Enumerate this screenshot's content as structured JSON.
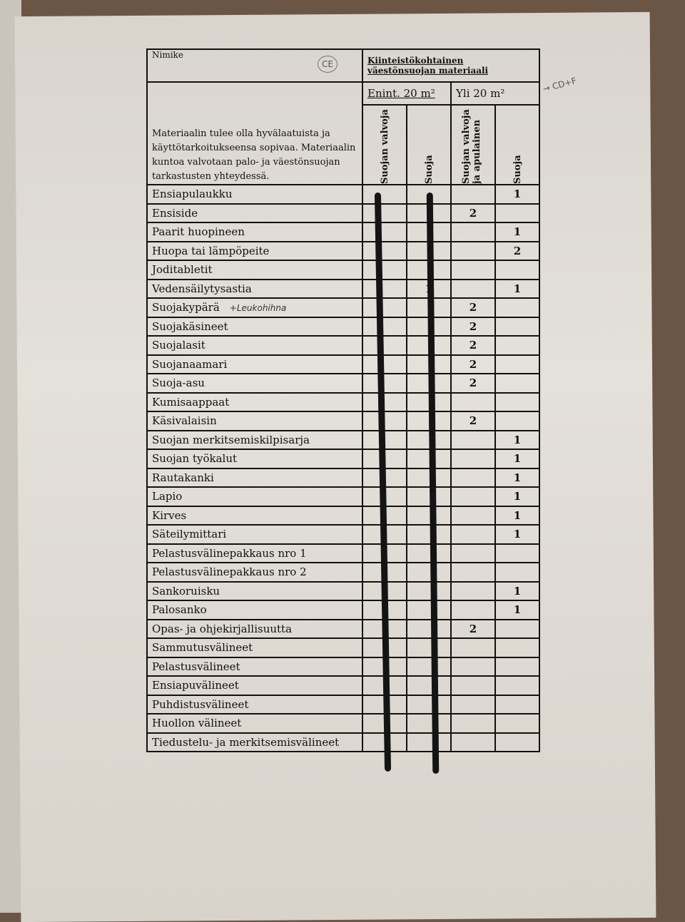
{
  "header": {
    "nimike": "Nimike",
    "group_title": "Kiinteistökohtainen väestönsuojan materiaali",
    "description": "Materiaalin tulee olla hyvälaatuista ja käyttötarkoitukseensa sopivaa. Materiaalin kuntoa valvotaan palo- ja väestönsuojan tarkastusten yhteydessä.",
    "size_small": "Enint. 20 m²",
    "size_large": "Yli 20 m²",
    "columns": [
      "Suojan valvoja",
      "Suoja",
      "Suojan valvoja ja apulainen",
      "Suoja"
    ]
  },
  "annotations": {
    "ce": "CE",
    "cd_f": "→ CD+F"
  },
  "rows": [
    {
      "name": "Ensiapulaukku",
      "v": [
        "",
        "",
        "",
        "1"
      ]
    },
    {
      "name": "Ensiside",
      "v": [
        "",
        "",
        "2",
        ""
      ]
    },
    {
      "name": "Paarit huopineen",
      "v": [
        "",
        "",
        "",
        "1"
      ]
    },
    {
      "name": "Huopa tai lämpöpeite",
      "v": [
        "",
        "",
        "",
        "2"
      ]
    },
    {
      "name": "Joditabletit",
      "v": [
        "",
        "",
        "",
        ""
      ]
    },
    {
      "name": "Vedensäilytysastia",
      "v": [
        "",
        "1",
        "",
        "1"
      ]
    },
    {
      "name": "Suojakypärä",
      "note": "+Leukohihna",
      "v": [
        "",
        "",
        "2",
        ""
      ]
    },
    {
      "name": "Suojakäsineet",
      "v": [
        "",
        "",
        "2",
        ""
      ]
    },
    {
      "name": "Suojalasit",
      "v": [
        "",
        "",
        "2",
        ""
      ]
    },
    {
      "name": "Suojanaamari",
      "v": [
        "",
        "",
        "2",
        ""
      ]
    },
    {
      "name": "Suoja-asu",
      "v": [
        "",
        "",
        "2",
        ""
      ]
    },
    {
      "name": "Kumisaappaat",
      "v": [
        "",
        "",
        "",
        ""
      ]
    },
    {
      "name": "Käsivalaisin",
      "v": [
        "",
        "",
        "2",
        ""
      ]
    },
    {
      "name": "Suojan merkitsemiskilpisarja",
      "v": [
        "",
        "",
        "",
        "1"
      ]
    },
    {
      "name": "Suojan työkalut",
      "v": [
        "",
        "",
        "",
        "1"
      ]
    },
    {
      "name": "Rautakanki",
      "v": [
        "",
        "",
        "",
        "1"
      ]
    },
    {
      "name": "Lapio",
      "v": [
        "",
        "",
        "",
        "1"
      ]
    },
    {
      "name": "Kirves",
      "v": [
        "",
        "",
        "",
        "1"
      ]
    },
    {
      "name": "Säteilymittari",
      "v": [
        "",
        "",
        "",
        "1"
      ]
    },
    {
      "name": "Pelastusvälinepakkaus nro 1",
      "v": [
        "",
        "",
        "",
        ""
      ]
    },
    {
      "name": "Pelastusvälinepakkaus nro 2",
      "v": [
        "",
        "",
        "",
        ""
      ]
    },
    {
      "name": "Sankoruisku",
      "v": [
        "",
        "",
        "",
        "1"
      ]
    },
    {
      "name": "Palosanko",
      "v": [
        "",
        "",
        "",
        "1"
      ]
    },
    {
      "name": "Opas- ja ohjekirjallisuutta",
      "v": [
        "",
        "",
        "2",
        ""
      ]
    },
    {
      "name": "Sammutusvälineet",
      "v": [
        "",
        "",
        "",
        ""
      ]
    },
    {
      "name": "Pelastusvälineet",
      "v": [
        "",
        "",
        "",
        ""
      ]
    },
    {
      "name": "Ensiapuvälineet",
      "v": [
        "",
        "",
        "",
        ""
      ]
    },
    {
      "name": "Puhdistusvälineet",
      "v": [
        "",
        "",
        "",
        ""
      ]
    },
    {
      "name": "Huollon välineet",
      "v": [
        "",
        "",
        "",
        ""
      ]
    },
    {
      "name": "Tiedustelu- ja merkitsemisvälineet",
      "v": [
        "",
        "",
        "",
        ""
      ]
    }
  ]
}
